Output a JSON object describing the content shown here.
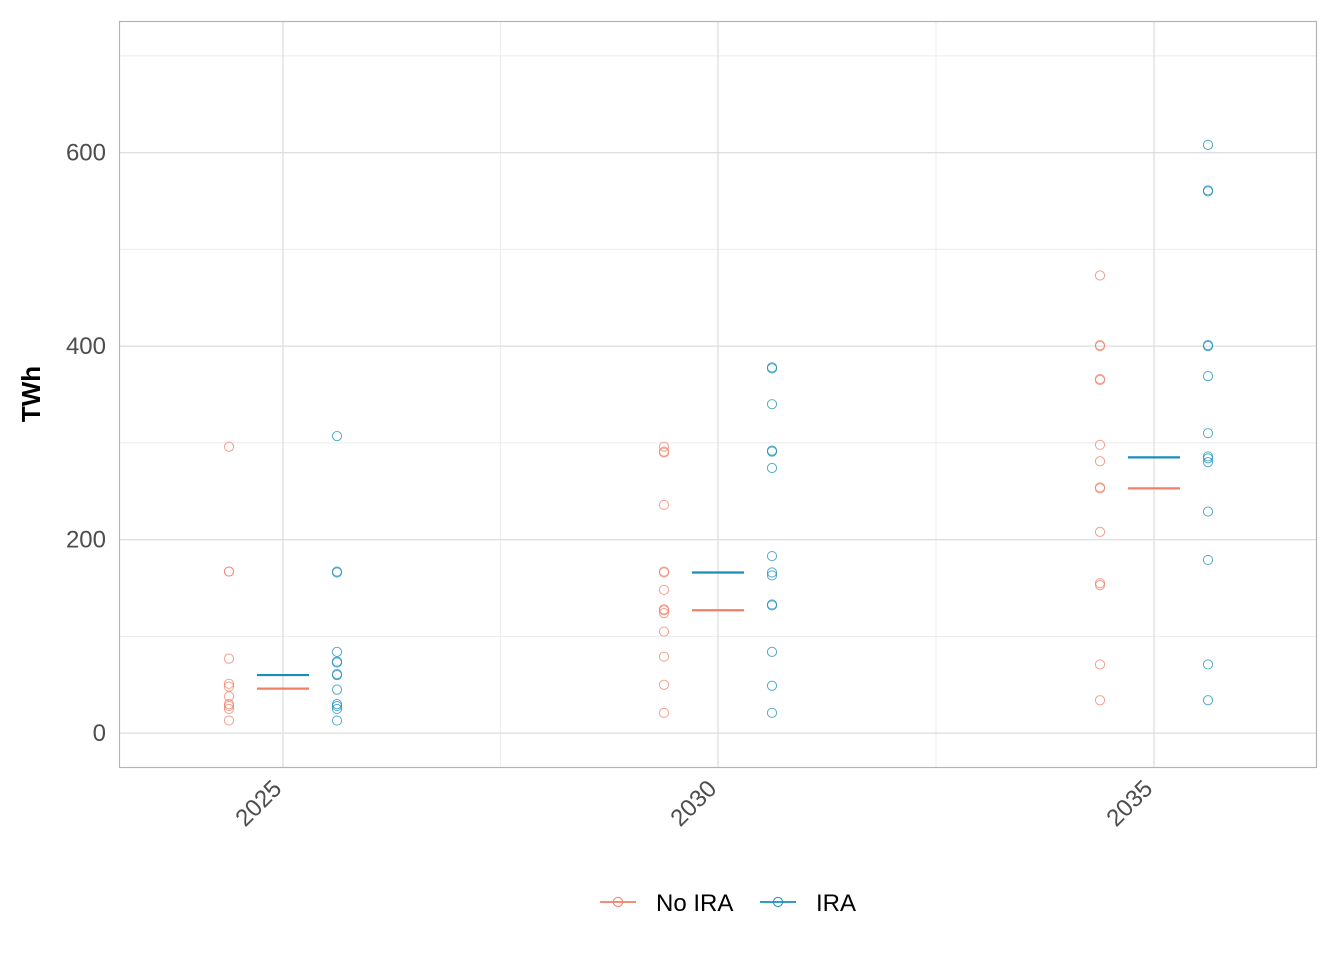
{
  "chart_data": {
    "type": "scatter",
    "title": "",
    "xlabel": "",
    "ylabel": "TWh",
    "ylim": [
      -35,
      735
    ],
    "yticks": [
      0,
      200,
      400,
      600
    ],
    "categories": [
      "2025",
      "2030",
      "2035"
    ],
    "grid": true,
    "legend_position": "bottom",
    "series": [
      {
        "name": "No IRA",
        "color": "#f07f66",
        "values": [
          [
            296,
            167,
            167,
            77,
            51,
            48,
            38,
            30,
            28,
            25,
            13
          ],
          [
            296,
            291,
            290,
            236,
            167,
            166,
            148,
            128,
            127,
            124,
            105,
            79,
            50,
            21
          ],
          [
            473,
            401,
            400,
            366,
            365,
            298,
            281,
            254,
            253,
            208,
            155,
            153,
            71,
            34
          ]
        ],
        "mean": [
          46,
          127,
          253
        ]
      },
      {
        "name": "IRA",
        "color": "#1a8dbd",
        "values": [
          [
            307,
            167,
            166,
            84,
            74,
            73,
            61,
            60,
            45,
            30,
            28,
            25,
            13
          ],
          [
            378,
            377,
            340,
            292,
            291,
            274,
            183,
            166,
            163,
            133,
            132,
            84,
            49,
            21
          ],
          [
            608,
            561,
            560,
            401,
            400,
            369,
            310,
            286,
            284,
            280,
            229,
            179,
            71,
            34
          ]
        ],
        "mean": [
          60,
          166,
          285
        ]
      }
    ]
  }
}
